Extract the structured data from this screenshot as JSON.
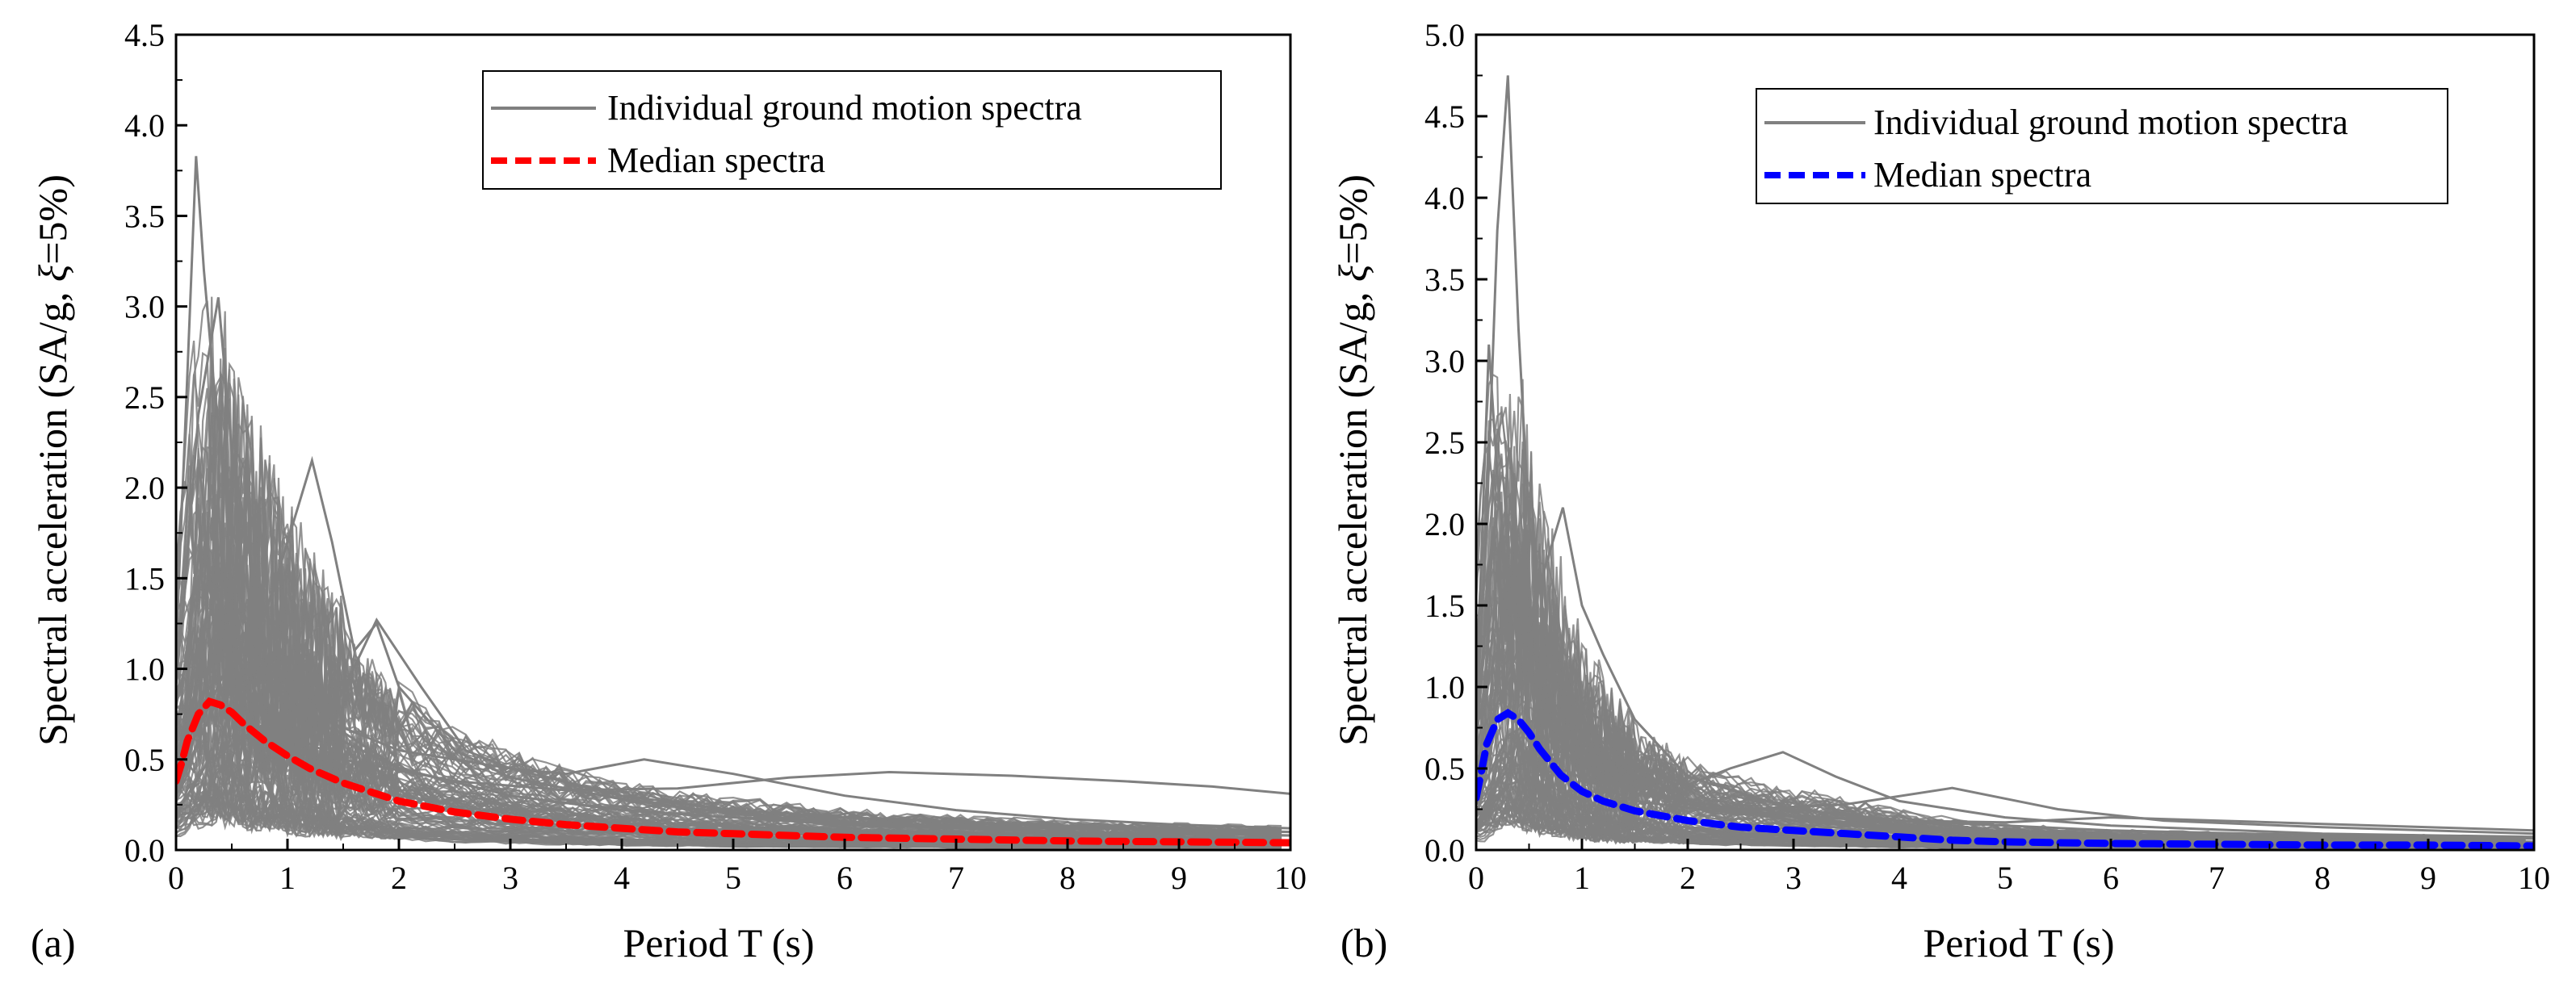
{
  "chart_data": [
    {
      "type": "line",
      "panel_label": "(a)",
      "xlabel": "Period T (s)",
      "ylabel_prefix": "Spectral acceleration (SA/g, ",
      "ylabel_symbol": "ξ",
      "ylabel_suffix": "=5%)",
      "xlim": [
        0,
        10
      ],
      "ylim": [
        0,
        4.5
      ],
      "xticks": [
        "0",
        "1",
        "2",
        "3",
        "4",
        "5",
        "6",
        "7",
        "8",
        "9",
        "10"
      ],
      "yticks": [
        "0.0",
        "0.5",
        "1.0",
        "1.5",
        "2.0",
        "2.5",
        "3.0",
        "3.5",
        "4.0",
        "4.5"
      ],
      "grid": false,
      "legend_position": "top-right",
      "legend": [
        {
          "label": "Individual ground motion spectra",
          "color": "#808080",
          "style": "solid"
        },
        {
          "label": "Median spectra",
          "color": "#ff0000",
          "style": "dashed"
        }
      ],
      "series": [
        {
          "name": "Median spectra",
          "color": "#ff0000",
          "x": [
            0,
            0.05,
            0.1,
            0.2,
            0.3,
            0.4,
            0.5,
            0.6,
            0.8,
            1.0,
            1.2,
            1.5,
            2.0,
            2.5,
            3.0,
            3.5,
            4.0,
            4.5,
            5.0,
            6.0,
            7.0,
            8.0,
            9.0,
            10.0
          ],
          "y": [
            0.38,
            0.48,
            0.6,
            0.75,
            0.82,
            0.8,
            0.76,
            0.7,
            0.6,
            0.52,
            0.45,
            0.37,
            0.27,
            0.21,
            0.17,
            0.14,
            0.12,
            0.1,
            0.09,
            0.07,
            0.06,
            0.05,
            0.045,
            0.04
          ]
        },
        {
          "name": "Individual ground motion spectra",
          "color": "#808080",
          "peak_sa": 3.83,
          "peak_period": 0.18,
          "x": [
            0,
            0.1,
            0.18,
            0.25,
            0.35,
            0.5,
            0.7,
            1.0,
            1.5,
            2.0,
            3.0,
            4.0,
            5.0,
            6.0,
            7.0,
            8.0,
            9.0,
            10.0
          ],
          "y": [
            1.1,
            2.6,
            3.83,
            3.2,
            2.5,
            1.8,
            1.3,
            0.9,
            0.6,
            0.45,
            0.3,
            0.22,
            0.18,
            0.15,
            0.13,
            0.12,
            0.11,
            0.1
          ]
        },
        {
          "name": "Individual ground motion spectra",
          "color": "#808080",
          "peak_sa": 3.05,
          "peak_period": 0.38,
          "x": [
            0,
            0.1,
            0.2,
            0.38,
            0.5,
            0.7,
            1.0,
            1.5,
            2.0,
            3.0,
            4.0,
            6.0,
            8.0,
            10.0
          ],
          "y": [
            0.9,
            1.6,
            2.4,
            3.05,
            2.2,
            1.5,
            1.0,
            0.65,
            0.45,
            0.3,
            0.22,
            0.14,
            0.1,
            0.08
          ]
        },
        {
          "name": "Individual ground motion spectra",
          "color": "#808080",
          "peak_sa": 2.15,
          "peak_period": 1.22,
          "x": [
            0,
            0.2,
            0.5,
            0.8,
            1.0,
            1.22,
            1.4,
            1.6,
            1.8,
            2.0,
            2.5,
            3.0,
            4.0,
            5.0,
            6.0,
            8.0,
            10.0
          ],
          "y": [
            0.3,
            0.6,
            1.0,
            1.3,
            1.7,
            2.15,
            1.7,
            1.1,
            1.25,
            0.9,
            0.55,
            0.4,
            0.28,
            0.2,
            0.15,
            0.1,
            0.08
          ]
        },
        {
          "name": "Individual ground motion spectra",
          "color": "#808080",
          "peak_sa": 1.27,
          "peak_period": 1.8,
          "x": [
            0,
            0.3,
            0.6,
            1.0,
            1.4,
            1.8,
            2.2,
            2.6,
            3.0,
            4.0,
            5.0,
            6.0,
            8.0,
            10.0
          ],
          "y": [
            0.4,
            0.8,
            1.2,
            0.95,
            0.75,
            1.27,
            0.9,
            0.55,
            0.45,
            0.3,
            0.22,
            0.18,
            0.13,
            0.1
          ]
        },
        {
          "name": "Individual ground motion spectra",
          "color": "#808080",
          "peak_sa": 0.5,
          "peak_period": 4.2,
          "x": [
            0,
            0.3,
            0.7,
            1.0,
            2.0,
            3.0,
            3.5,
            4.2,
            5.0,
            6.0,
            7.0,
            8.0,
            9.0,
            10.0
          ],
          "y": [
            0.3,
            0.9,
            1.1,
            0.8,
            0.55,
            0.45,
            0.42,
            0.5,
            0.42,
            0.3,
            0.22,
            0.17,
            0.14,
            0.12
          ]
        },
        {
          "name": "Individual ground motion spectra",
          "color": "#808080",
          "peak_sa": 0.43,
          "peak_period": 6.4,
          "x": [
            0,
            0.3,
            0.8,
            1.5,
            2.5,
            3.5,
            4.5,
            5.5,
            6.4,
            7.5,
            8.5,
            9.3,
            10.0
          ],
          "y": [
            0.2,
            0.5,
            0.7,
            0.5,
            0.38,
            0.33,
            0.34,
            0.4,
            0.43,
            0.41,
            0.38,
            0.35,
            0.31
          ]
        }
      ]
    },
    {
      "type": "line",
      "panel_label": "(b)",
      "xlabel": "Period T (s)",
      "ylabel_prefix": "Spectral acceleration (SA/g, ",
      "ylabel_symbol": "ξ",
      "ylabel_suffix": "=5%)",
      "xlim": [
        0,
        10
      ],
      "ylim": [
        0,
        5.0
      ],
      "xticks": [
        "0",
        "1",
        "2",
        "3",
        "4",
        "5",
        "6",
        "7",
        "8",
        "9",
        "10"
      ],
      "yticks": [
        "0.0",
        "0.5",
        "1.0",
        "1.5",
        "2.0",
        "2.5",
        "3.0",
        "3.5",
        "4.0",
        "4.5",
        "5.0"
      ],
      "grid": false,
      "legend_position": "top-right",
      "legend": [
        {
          "label": "Individual ground motion spectra",
          "color": "#808080",
          "style": "solid"
        },
        {
          "label": "Median spectra",
          "color": "#0000ff",
          "style": "dashed"
        }
      ],
      "series": [
        {
          "name": "Median spectra",
          "color": "#0000ff",
          "x": [
            0,
            0.05,
            0.1,
            0.2,
            0.3,
            0.4,
            0.5,
            0.6,
            0.8,
            1.0,
            1.2,
            1.5,
            2.0,
            2.5,
            3.0,
            3.5,
            4.0,
            4.5,
            5.0,
            6.0,
            7.0,
            8.0,
            9.0,
            10.0
          ],
          "y": [
            0.32,
            0.48,
            0.65,
            0.8,
            0.84,
            0.8,
            0.72,
            0.62,
            0.46,
            0.36,
            0.3,
            0.24,
            0.18,
            0.14,
            0.12,
            0.1,
            0.08,
            0.06,
            0.05,
            0.04,
            0.035,
            0.03,
            0.03,
            0.025
          ]
        },
        {
          "name": "Individual ground motion spectra",
          "color": "#808080",
          "peak_sa": 4.75,
          "peak_period": 0.3,
          "x": [
            0,
            0.1,
            0.2,
            0.3,
            0.4,
            0.5,
            0.7,
            1.0,
            1.5,
            2.0,
            3.0,
            4.0,
            6.0,
            8.0,
            10.0
          ],
          "y": [
            0.8,
            2.0,
            3.8,
            4.75,
            3.2,
            2.0,
            1.2,
            0.8,
            0.45,
            0.3,
            0.18,
            0.12,
            0.08,
            0.06,
            0.05
          ]
        },
        {
          "name": "Individual ground motion spectra",
          "color": "#808080",
          "peak_sa": 3.1,
          "peak_period": 0.12,
          "x": [
            0,
            0.06,
            0.12,
            0.2,
            0.3,
            0.5,
            0.8,
            1.0,
            1.5,
            2.0,
            3.0,
            5.0,
            7.0,
            10.0
          ],
          "y": [
            0.9,
            2.0,
            3.1,
            2.3,
            1.6,
            1.1,
            0.8,
            0.6,
            0.4,
            0.28,
            0.18,
            0.1,
            0.07,
            0.05
          ]
        },
        {
          "name": "Individual ground motion spectra",
          "color": "#808080",
          "peak_sa": 2.1,
          "peak_period": 0.82,
          "x": [
            0,
            0.2,
            0.5,
            0.82,
            1.0,
            1.2,
            1.5,
            2.0,
            3.0,
            4.0,
            6.0,
            8.0,
            10.0
          ],
          "y": [
            0.4,
            0.9,
            1.4,
            2.1,
            1.5,
            1.2,
            0.8,
            0.45,
            0.25,
            0.18,
            0.12,
            0.09,
            0.07
          ]
        },
        {
          "name": "Individual ground motion spectra",
          "color": "#808080",
          "peak_sa": 0.6,
          "peak_period": 2.9,
          "x": [
            0,
            0.3,
            0.8,
            1.2,
            1.6,
            2.0,
            2.4,
            2.9,
            3.4,
            4.0,
            5.0,
            6.0,
            8.0,
            10.0
          ],
          "y": [
            0.3,
            0.7,
            0.9,
            0.8,
            0.5,
            0.4,
            0.5,
            0.6,
            0.45,
            0.3,
            0.2,
            0.15,
            0.1,
            0.08
          ]
        },
        {
          "name": "Individual ground motion spectra",
          "color": "#808080",
          "peak_sa": 0.38,
          "peak_period": 4.5,
          "x": [
            0,
            0.3,
            0.8,
            1.5,
            2.5,
            3.5,
            4.5,
            5.5,
            6.5,
            8.0,
            10.0
          ],
          "y": [
            0.2,
            0.5,
            0.6,
            0.35,
            0.25,
            0.28,
            0.38,
            0.25,
            0.18,
            0.14,
            0.1
          ]
        },
        {
          "name": "Individual ground motion spectra",
          "color": "#808080",
          "peak_sa": 0.2,
          "peak_period": 6.0,
          "x": [
            0,
            0.3,
            0.8,
            1.5,
            2.5,
            4.0,
            5.0,
            6.0,
            7.0,
            8.0,
            9.0,
            10.0
          ],
          "y": [
            0.15,
            0.4,
            0.5,
            0.3,
            0.22,
            0.18,
            0.17,
            0.2,
            0.18,
            0.16,
            0.14,
            0.12
          ]
        }
      ]
    }
  ]
}
